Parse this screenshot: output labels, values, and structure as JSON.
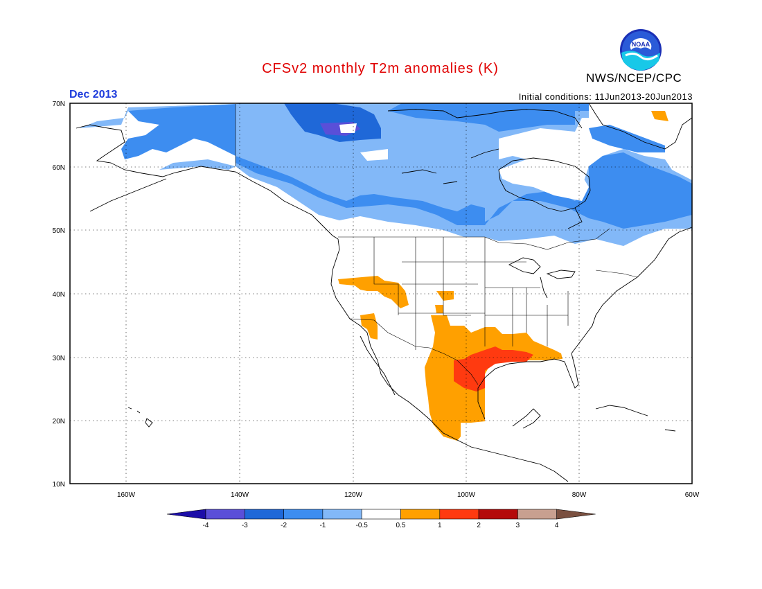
{
  "header": {
    "title": "CFSv2 monthly T2m anomalies (K)",
    "period": "Dec 2013",
    "initial_conditions": "Initial conditions: 11Jun2013-20Jun2013",
    "agency": "NWS/NCEP/CPC",
    "logo_text": "NOAA",
    "logo_icon": "noaa-logo-icon"
  },
  "map": {
    "projection": "lat-lon",
    "lon_range": [
      -170,
      -60
    ],
    "lat_range": [
      10,
      70
    ],
    "y_ticks": [
      "70N",
      "60N",
      "50N",
      "40N",
      "30N",
      "20N",
      "10N"
    ],
    "x_ticks": [
      "160W",
      "140W",
      "120W",
      "100W",
      "80W",
      "60W"
    ],
    "gridlines": "dotted"
  },
  "colorbar": {
    "labels": [
      "-4",
      "-3",
      "-2",
      "-1",
      "-0.5",
      "0.5",
      "1",
      "2",
      "3",
      "4"
    ],
    "colors": [
      "#1c0ea8",
      "#5a4fd8",
      "#1f68d8",
      "#3d8df0",
      "#82b8f8",
      "#ffffff",
      "#ffa000",
      "#ff3a10",
      "#b40a0a",
      "#c8a090",
      "#7a5040"
    ]
  },
  "colors": {
    "ocean": "#ffffff",
    "coast": "#000000",
    "cold_1": "#82b8f8",
    "cold_2": "#3d8df0",
    "cold_3": "#1f68d8",
    "cold_4": "#5a4fd8",
    "warm_1": "#ffa000",
    "warm_2": "#ff3a10"
  }
}
